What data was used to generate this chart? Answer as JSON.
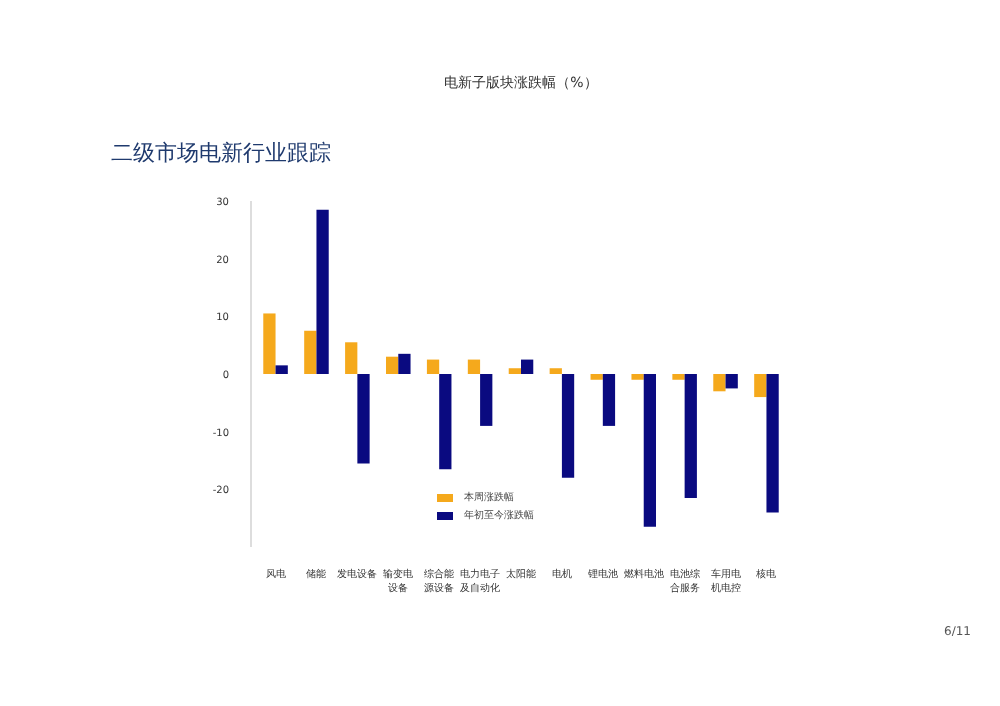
{
  "chart_data": {
    "type": "bar",
    "title": "电新子版块涨跌幅（%）",
    "subtitle": "二级市场电新行业跟踪",
    "categories": [
      "风电",
      "储能",
      "发电设备",
      "输变电设备",
      "综合能源设备",
      "电力电子及自动化",
      "太阳能",
      "电机",
      "锂电池",
      "燃料电池",
      "电池综合服务",
      "车用电机电控",
      "核电"
    ],
    "series": [
      {
        "name": "本周涨跌幅",
        "color": "#f5a91c",
        "values": [
          10.5,
          7.5,
          5.5,
          3,
          2.5,
          2.5,
          1,
          1,
          -1,
          -1,
          -1,
          -3,
          -4
        ]
      },
      {
        "name": "年初至今涨跌幅",
        "color": "#0a0a80",
        "values": [
          1.5,
          28.5,
          -15.5,
          3.5,
          -16.5,
          -9,
          2.5,
          -18,
          -9,
          -26.5,
          -21.5,
          -2.5,
          -24
        ]
      }
    ],
    "ylim": [
      -30,
      30
    ],
    "yticks": [
      -20,
      -10,
      0,
      10,
      20,
      30
    ],
    "grid": false,
    "legend": "bottom",
    "annotations": [
      "6/11"
    ]
  }
}
